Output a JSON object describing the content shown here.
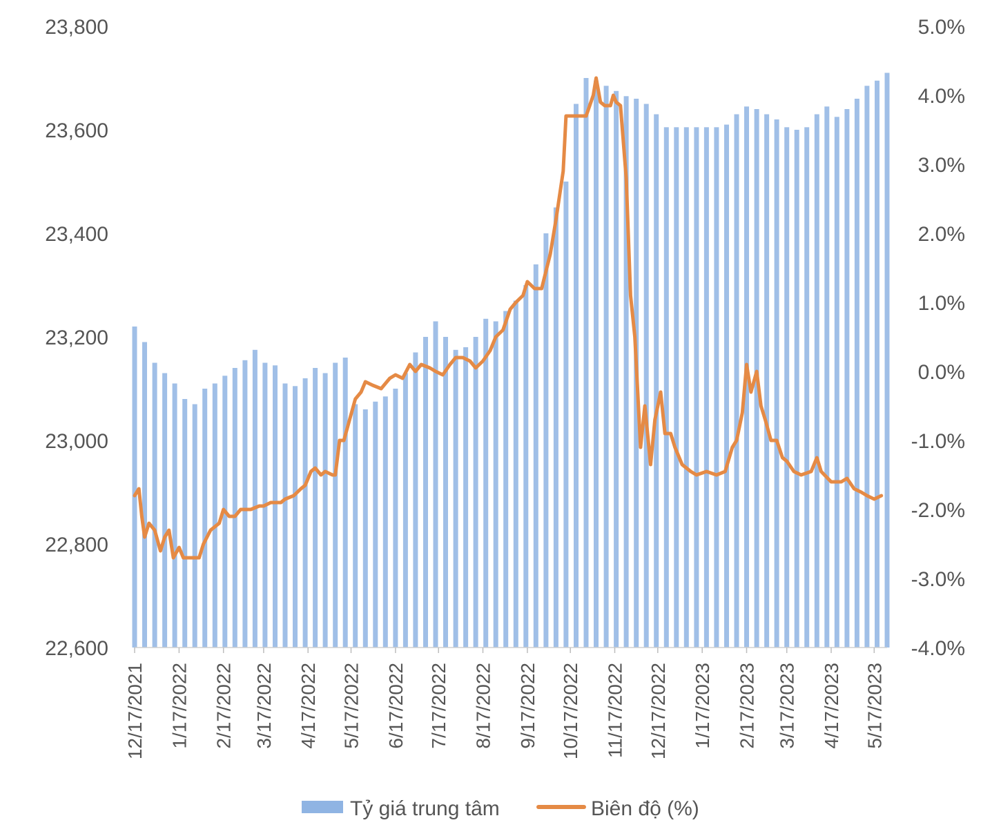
{
  "chart_data": {
    "type": "bar+line",
    "title": "",
    "x_tick_labels": [
      "12/17/2021",
      "1/17/2022",
      "2/17/2022",
      "3/17/2022",
      "4/17/2022",
      "5/17/2022",
      "6/17/2022",
      "7/17/2022",
      "8/17/2022",
      "9/17/2022",
      "10/17/2022",
      "11/17/2022",
      "12/17/2022",
      "1/17/2023",
      "2/17/2023",
      "3/17/2023",
      "4/17/2023",
      "5/17/2023"
    ],
    "y_left": {
      "min": 22600,
      "max": 23800,
      "ticks": [
        "22,600",
        "22,800",
        "23,000",
        "23,200",
        "23,400",
        "23,600",
        "23,800"
      ]
    },
    "y_right": {
      "min": -4.0,
      "max": 5.0,
      "ticks": [
        "-4.0%",
        "-3.0%",
        "-2.0%",
        "-1.0%",
        "0.0%",
        "1.0%",
        "2.0%",
        "3.0%",
        "4.0%",
        "5.0%"
      ]
    },
    "legend_position": "bottom",
    "series": [
      {
        "name": "Tỷ giá trung tâm",
        "kind": "bar",
        "color": "#8fb4e3",
        "points": [
          [
            "12/17/2021",
            23220
          ],
          [
            "12/24/2021",
            23190
          ],
          [
            "12/31/2021",
            23150
          ],
          [
            "1/7/2022",
            23130
          ],
          [
            "1/14/2022",
            23110
          ],
          [
            "1/21/2022",
            23080
          ],
          [
            "1/28/2022",
            23070
          ],
          [
            "2/4/2022",
            23100
          ],
          [
            "2/11/2022",
            23110
          ],
          [
            "2/18/2022",
            23125
          ],
          [
            "2/25/2022",
            23140
          ],
          [
            "3/4/2022",
            23155
          ],
          [
            "3/11/2022",
            23175
          ],
          [
            "3/18/2022",
            23150
          ],
          [
            "3/25/2022",
            23145
          ],
          [
            "4/1/2022",
            23110
          ],
          [
            "4/8/2022",
            23105
          ],
          [
            "4/15/2022",
            23120
          ],
          [
            "4/22/2022",
            23140
          ],
          [
            "4/29/2022",
            23130
          ],
          [
            "5/6/2022",
            23150
          ],
          [
            "5/13/2022",
            23160
          ],
          [
            "5/20/2022",
            23070
          ],
          [
            "5/27/2022",
            23060
          ],
          [
            "6/3/2022",
            23075
          ],
          [
            "6/10/2022",
            23085
          ],
          [
            "6/17/2022",
            23100
          ],
          [
            "6/24/2022",
            23130
          ],
          [
            "7/1/2022",
            23170
          ],
          [
            "7/8/2022",
            23200
          ],
          [
            "7/15/2022",
            23230
          ],
          [
            "7/22/2022",
            23200
          ],
          [
            "7/29/2022",
            23175
          ],
          [
            "8/5/2022",
            23180
          ],
          [
            "8/12/2022",
            23200
          ],
          [
            "8/19/2022",
            23235
          ],
          [
            "8/26/2022",
            23230
          ],
          [
            "9/2/2022",
            23250
          ],
          [
            "9/9/2022",
            23270
          ],
          [
            "9/16/2022",
            23300
          ],
          [
            "9/23/2022",
            23340
          ],
          [
            "9/30/2022",
            23400
          ],
          [
            "10/7/2022",
            23450
          ],
          [
            "10/14/2022",
            23500
          ],
          [
            "10/21/2022",
            23650
          ],
          [
            "10/28/2022",
            23700
          ],
          [
            "11/4/2022",
            23695
          ],
          [
            "11/11/2022",
            23685
          ],
          [
            "11/18/2022",
            23675
          ],
          [
            "11/25/2022",
            23665
          ],
          [
            "12/2/2022",
            23660
          ],
          [
            "12/9/2022",
            23650
          ],
          [
            "12/16/2022",
            23630
          ],
          [
            "12/23/2022",
            23605
          ],
          [
            "12/30/2022",
            23605
          ],
          [
            "1/6/2023",
            23605
          ],
          [
            "1/13/2023",
            23605
          ],
          [
            "1/20/2023",
            23605
          ],
          [
            "1/27/2023",
            23605
          ],
          [
            "2/3/2023",
            23610
          ],
          [
            "2/10/2023",
            23630
          ],
          [
            "2/17/2023",
            23645
          ],
          [
            "2/24/2023",
            23640
          ],
          [
            "3/3/2023",
            23630
          ],
          [
            "3/10/2023",
            23620
          ],
          [
            "3/17/2023",
            23605
          ],
          [
            "3/24/2023",
            23600
          ],
          [
            "3/31/2023",
            23605
          ],
          [
            "4/7/2023",
            23630
          ],
          [
            "4/14/2023",
            23645
          ],
          [
            "4/21/2023",
            23625
          ],
          [
            "4/28/2023",
            23640
          ],
          [
            "5/5/2023",
            23660
          ],
          [
            "5/12/2023",
            23685
          ],
          [
            "5/19/2023",
            23695
          ],
          [
            "5/26/2023",
            23710
          ]
        ]
      },
      {
        "name": "Biên độ (%)",
        "kind": "line",
        "color": "#e58a45",
        "points": [
          [
            "12/17/2021",
            -1.8
          ],
          [
            "12/20/2021",
            -1.7
          ],
          [
            "12/22/2021",
            -2.1
          ],
          [
            "12/24/2021",
            -2.4
          ],
          [
            "12/27/2021",
            -2.2
          ],
          [
            "12/31/2021",
            -2.3
          ],
          [
            "1/4/2022",
            -2.6
          ],
          [
            "1/7/2022",
            -2.4
          ],
          [
            "1/10/2022",
            -2.3
          ],
          [
            "1/13/2022",
            -2.7
          ],
          [
            "1/17/2022",
            -2.55
          ],
          [
            "1/20/2022",
            -2.7
          ],
          [
            "1/25/2022",
            -2.7
          ],
          [
            "1/31/2022",
            -2.7
          ],
          [
            "2/3/2022",
            -2.5
          ],
          [
            "2/8/2022",
            -2.3
          ],
          [
            "2/14/2022",
            -2.2
          ],
          [
            "2/17/2022",
            -2.0
          ],
          [
            "2/21/2022",
            -2.1
          ],
          [
            "2/25/2022",
            -2.1
          ],
          [
            "3/1/2022",
            -2.0
          ],
          [
            "3/8/2022",
            -2.0
          ],
          [
            "3/14/2022",
            -1.95
          ],
          [
            "3/17/2022",
            -1.95
          ],
          [
            "3/22/2022",
            -1.9
          ],
          [
            "3/29/2022",
            -1.9
          ],
          [
            "4/1/2022",
            -1.85
          ],
          [
            "4/7/2022",
            -1.8
          ],
          [
            "4/12/2022",
            -1.7
          ],
          [
            "4/15/2022",
            -1.65
          ],
          [
            "4/19/2022",
            -1.45
          ],
          [
            "4/22/2022",
            -1.4
          ],
          [
            "4/26/2022",
            -1.5
          ],
          [
            "4/29/2022",
            -1.45
          ],
          [
            "5/4/2022",
            -1.5
          ],
          [
            "5/6/2022",
            -1.5
          ],
          [
            "5/9/2022",
            -1.0
          ],
          [
            "5/12/2022",
            -1.0
          ],
          [
            "5/16/2022",
            -0.7
          ],
          [
            "5/20/2022",
            -0.4
          ],
          [
            "5/24/2022",
            -0.3
          ],
          [
            "5/27/2022",
            -0.15
          ],
          [
            "6/1/2022",
            -0.2
          ],
          [
            "6/7/2022",
            -0.25
          ],
          [
            "6/13/2022",
            -0.1
          ],
          [
            "6/17/2022",
            -0.05
          ],
          [
            "6/22/2022",
            -0.1
          ],
          [
            "6/27/2022",
            0.1
          ],
          [
            "7/1/2022",
            0.0
          ],
          [
            "7/5/2022",
            0.1
          ],
          [
            "7/11/2022",
            0.05
          ],
          [
            "7/15/2022",
            0.0
          ],
          [
            "7/20/2022",
            -0.05
          ],
          [
            "7/25/2022",
            0.1
          ],
          [
            "7/29/2022",
            0.2
          ],
          [
            "8/3/2022",
            0.2
          ],
          [
            "8/8/2022",
            0.15
          ],
          [
            "8/12/2022",
            0.05
          ],
          [
            "8/17/2022",
            0.15
          ],
          [
            "8/22/2022",
            0.3
          ],
          [
            "8/26/2022",
            0.5
          ],
          [
            "8/31/2022",
            0.6
          ],
          [
            "9/5/2022",
            0.9
          ],
          [
            "9/9/2022",
            1.0
          ],
          [
            "9/14/2022",
            1.1
          ],
          [
            "9/17/2022",
            1.3
          ],
          [
            "9/22/2022",
            1.2
          ],
          [
            "9/27/2022",
            1.2
          ],
          [
            "10/3/2022",
            1.7
          ],
          [
            "10/7/2022",
            2.2
          ],
          [
            "10/12/2022",
            2.9
          ],
          [
            "10/14/2022",
            3.7
          ],
          [
            "10/21/2022",
            3.7
          ],
          [
            "10/28/2022",
            3.7
          ],
          [
            "11/2/2022",
            4.0
          ],
          [
            "11/4/2022",
            4.25
          ],
          [
            "11/7/2022",
            3.9
          ],
          [
            "11/10/2022",
            3.85
          ],
          [
            "11/14/2022",
            3.85
          ],
          [
            "11/16/2022",
            4.0
          ],
          [
            "11/18/2022",
            3.9
          ],
          [
            "11/21/2022",
            3.85
          ],
          [
            "11/25/2022",
            2.8
          ],
          [
            "11/28/2022",
            1.1
          ],
          [
            "12/1/2022",
            0.5
          ],
          [
            "12/5/2022",
            -1.1
          ],
          [
            "12/8/2022",
            -0.5
          ],
          [
            "12/12/2022",
            -1.35
          ],
          [
            "12/15/2022",
            -0.7
          ],
          [
            "12/19/2022",
            -0.3
          ],
          [
            "12/22/2022",
            -0.9
          ],
          [
            "12/26/2022",
            -0.9
          ],
          [
            "12/29/2022",
            -1.1
          ],
          [
            "1/3/2023",
            -1.35
          ],
          [
            "1/9/2023",
            -1.45
          ],
          [
            "1/13/2023",
            -1.5
          ],
          [
            "1/20/2023",
            -1.45
          ],
          [
            "1/27/2023",
            -1.5
          ],
          [
            "2/2/2023",
            -1.45
          ],
          [
            "2/7/2023",
            -1.1
          ],
          [
            "2/10/2023",
            -1.0
          ],
          [
            "2/14/2023",
            -0.6
          ],
          [
            "2/17/2023",
            0.1
          ],
          [
            "2/20/2023",
            -0.3
          ],
          [
            "2/24/2023",
            0.0
          ],
          [
            "2/27/2023",
            -0.5
          ],
          [
            "3/2/2023",
            -0.7
          ],
          [
            "3/6/2023",
            -1.0
          ],
          [
            "3/10/2023",
            -1.0
          ],
          [
            "3/14/2023",
            -1.25
          ],
          [
            "3/17/2023",
            -1.3
          ],
          [
            "3/22/2023",
            -1.45
          ],
          [
            "3/27/2023",
            -1.5
          ],
          [
            "4/3/2023",
            -1.45
          ],
          [
            "4/7/2023",
            -1.25
          ],
          [
            "4/10/2023",
            -1.45
          ],
          [
            "4/17/2023",
            -1.6
          ],
          [
            "4/24/2023",
            -1.6
          ],
          [
            "4/28/2023",
            -1.55
          ],
          [
            "5/3/2023",
            -1.7
          ],
          [
            "5/8/2023",
            -1.75
          ],
          [
            "5/12/2023",
            -1.8
          ],
          [
            "5/17/2023",
            -1.85
          ],
          [
            "5/22/2023",
            -1.8
          ]
        ]
      }
    ]
  }
}
